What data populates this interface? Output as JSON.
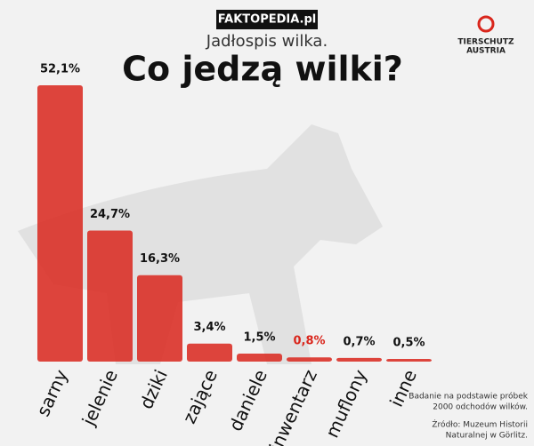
{
  "watermark": "FAKTOPEDIA.pl",
  "logo": {
    "line1": "TIERSCHUTZ",
    "line2": "AUSTRIA"
  },
  "chart_data": {
    "type": "bar",
    "subtitle": "Jadłospis wilka.",
    "title": "Co jedzą wilki?",
    "categories": [
      "sarny",
      "jelenie",
      "dziki",
      "zające",
      "daniele",
      "inwentarz",
      "muflony",
      "inne"
    ],
    "values": [
      52.1,
      24.7,
      16.3,
      3.4,
      1.5,
      0.8,
      0.7,
      0.5
    ],
    "value_labels": [
      "52,1%",
      "24,7%",
      "16,3%",
      "3,4%",
      "1,5%",
      "0,8%",
      "0,7%",
      "0,5%"
    ],
    "label_colors": [
      "#111111",
      "#111111",
      "#111111",
      "#111111",
      "#111111",
      "#d9261c",
      "#111111",
      "#111111"
    ],
    "color": "#d9261c",
    "notes": [
      "Badanie na podstawie próbek",
      "2000 odchodów wilków.",
      "Źródło: Muzeum Historii",
      "Naturalnej w Görlitz."
    ]
  }
}
